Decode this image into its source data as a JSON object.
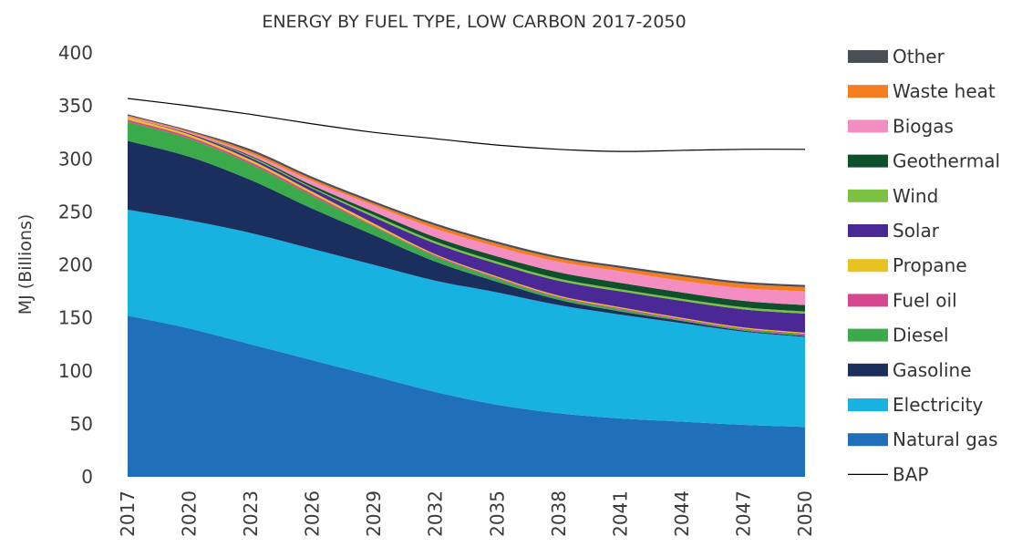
{
  "chart_data": {
    "type": "area",
    "title": "ENERGY BY FUEL TYPE, LOW CARBON 2017-2050",
    "ylabel": "MJ (Billions)",
    "xlabel": "",
    "x": [
      2017,
      2020,
      2023,
      2026,
      2029,
      2032,
      2035,
      2038,
      2041,
      2044,
      2047,
      2050
    ],
    "x_tick_labels": [
      "2017",
      "2020",
      "2023",
      "2026",
      "2029",
      "2032",
      "2035",
      "2038",
      "2041",
      "2044",
      "2047",
      "2050"
    ],
    "ylim": [
      0,
      400
    ],
    "y_ticks": [
      0,
      50,
      100,
      150,
      200,
      250,
      300,
      350,
      400
    ],
    "grid": false,
    "legend_position": "right",
    "stacked": true,
    "series": [
      {
        "name": "Natural gas",
        "color": "#1f6fba",
        "values": [
          152,
          140,
          125,
          110,
          95,
          80,
          68,
          60,
          55,
          52,
          49,
          47
        ]
      },
      {
        "name": "Electricity",
        "color": "#17b2e0",
        "values": [
          100,
          102,
          105,
          105,
          105,
          105,
          106,
          102,
          98,
          93,
          88,
          85
        ]
      },
      {
        "name": "Gasoline",
        "color": "#1b2f5e",
        "values": [
          65,
          60,
          50,
          38,
          28,
          18,
          10,
          5,
          3,
          2,
          1,
          1
        ]
      },
      {
        "name": "Diesel",
        "color": "#3aaa4a",
        "values": [
          18,
          17,
          15,
          12,
          8,
          5,
          3,
          2,
          2,
          1,
          1,
          1
        ]
      },
      {
        "name": "Fuel oil",
        "color": "#d6478f",
        "values": [
          2,
          2,
          2,
          2,
          1,
          1,
          1,
          1,
          1,
          1,
          1,
          1
        ]
      },
      {
        "name": "Propane",
        "color": "#e8c21e",
        "values": [
          2,
          2,
          2,
          2,
          2,
          1,
          1,
          1,
          1,
          1,
          1,
          1
        ]
      },
      {
        "name": "Solar",
        "color": "#4a2896",
        "values": [
          0,
          1,
          2,
          3,
          6,
          10,
          12,
          14,
          15,
          16,
          17,
          18
        ]
      },
      {
        "name": "Wind",
        "color": "#7cc242",
        "values": [
          0,
          0,
          1,
          1,
          2,
          2,
          2,
          2,
          2,
          2,
          2,
          2
        ]
      },
      {
        "name": "Geothermal",
        "color": "#0e4f2c",
        "values": [
          0,
          0,
          1,
          2,
          3,
          4,
          5,
          6,
          6,
          6,
          6,
          6
        ]
      },
      {
        "name": "Biogas",
        "color": "#f58ec0",
        "values": [
          1,
          1,
          2,
          4,
          6,
          8,
          9,
          10,
          11,
          11,
          12,
          13
        ]
      },
      {
        "name": "Waste heat",
        "color": "#f47d20",
        "values": [
          1,
          1,
          2,
          2,
          2,
          3,
          3,
          3,
          3,
          4,
          4,
          4
        ]
      },
      {
        "name": "Other",
        "color": "#4b4e57",
        "values": [
          1,
          1,
          2,
          2,
          2,
          2,
          2,
          2,
          2,
          2,
          2,
          2
        ]
      }
    ],
    "lines": [
      {
        "name": "BAP",
        "color": "#000000",
        "values": [
          357,
          350,
          342,
          333,
          325,
          319,
          313,
          309,
          307,
          308,
          309,
          309
        ]
      }
    ]
  }
}
